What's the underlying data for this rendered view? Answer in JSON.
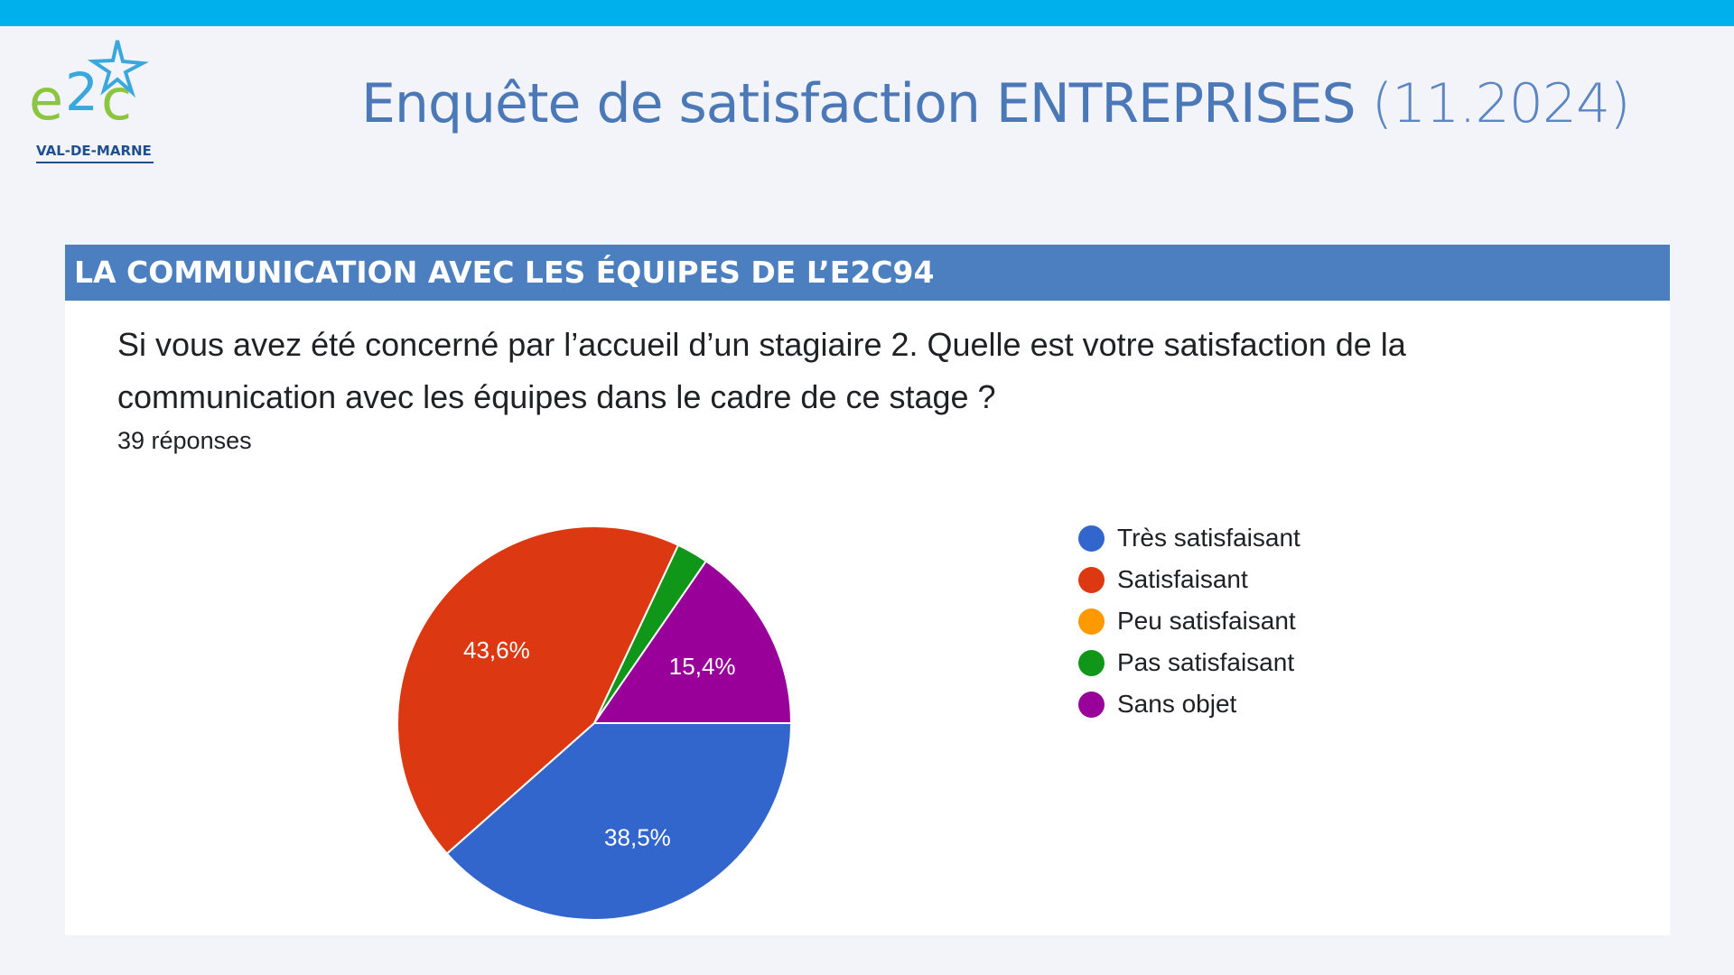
{
  "header": {
    "title_main": "Enquête de satisfaction ENTREPRISES",
    "title_date": "(11.2024)"
  },
  "logo": {
    "text": "e2c",
    "subtext": "VAL-DE-MARNE"
  },
  "section": {
    "title": "LA COMMUNICATION AVEC LES ÉQUIPES DE L’E2C94",
    "question": "Si vous avez été concerné par l’accueil d’un stagiaire   2. Quelle est votre satisfaction de la communication avec les équipes dans le cadre de ce stage ?",
    "responses": "39 réponses"
  },
  "chart_data": {
    "type": "pie",
    "categories": [
      "Très satisfaisant",
      "Satisfaisant",
      "Peu satisfaisant",
      "Pas satisfaisant",
      "Sans objet"
    ],
    "values": [
      38.5,
      43.6,
      0,
      2.6,
      15.4
    ],
    "data_labels": [
      "38,5%",
      "43,6%",
      "",
      "",
      "15,4%"
    ],
    "colors": [
      "#3366cc",
      "#dc3912",
      "#ff9900",
      "#109618",
      "#990099"
    ],
    "legend_position": "right",
    "title": ""
  }
}
